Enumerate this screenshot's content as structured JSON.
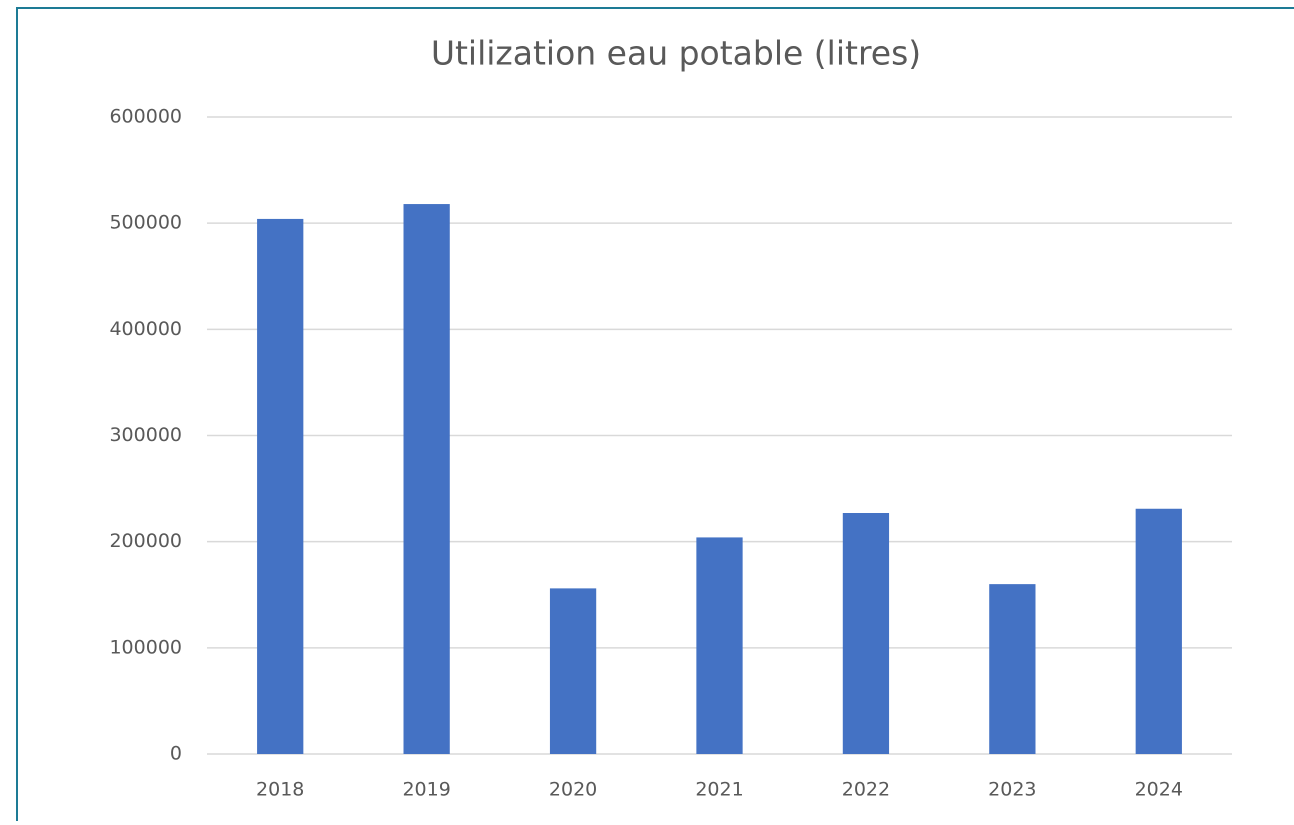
{
  "chart_data": {
    "type": "bar",
    "title": "Utilization eau potable (litres)",
    "categories": [
      "2018",
      "2019",
      "2020",
      "2021",
      "2022",
      "2023",
      "2024"
    ],
    "values": [
      504000,
      518000,
      156000,
      204000,
      227000,
      160000,
      231000
    ],
    "color": "#4472c4",
    "ylim": [
      0,
      600000
    ],
    "yticks": [
      0,
      100000,
      200000,
      300000,
      400000,
      500000,
      600000
    ],
    "grid": true
  }
}
